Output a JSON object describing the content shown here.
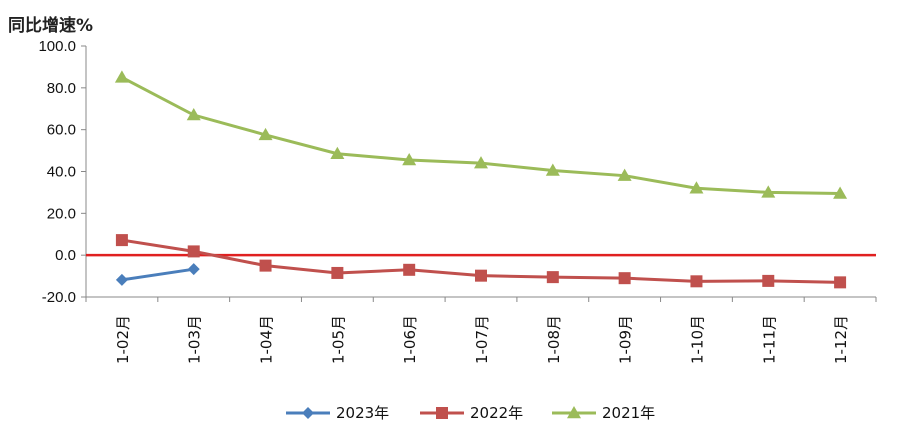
{
  "chart_data": {
    "type": "line",
    "title": "",
    "ylabel": "同比增速%",
    "xlabel": "",
    "categories": [
      "1-02月",
      "1-03月",
      "1-04月",
      "1-05月",
      "1-06月",
      "1-07月",
      "1-08月",
      "1-09月",
      "1-10月",
      "1-11月",
      "1-12月"
    ],
    "ylim": [
      -20,
      100
    ],
    "yticks": [
      "100.0",
      "80.0",
      "60.0",
      "40.0",
      "20.0",
      "0.0",
      "-20.0"
    ],
    "ytick_values": [
      100,
      80,
      60,
      40,
      20,
      0,
      -20
    ],
    "grid": false,
    "zero_line_color": "#e02020",
    "legend_position": "bottom",
    "series": [
      {
        "name": "2023年",
        "color": "#4a7ebb",
        "marker": "diamond",
        "values": [
          -11.8,
          -6.7,
          null,
          null,
          null,
          null,
          null,
          null,
          null,
          null,
          null
        ]
      },
      {
        "name": "2022年",
        "color": "#c0504d",
        "marker": "square",
        "values": [
          7.2,
          1.8,
          -5.0,
          -8.5,
          -7.0,
          -9.8,
          -10.5,
          -11.0,
          -12.5,
          -12.3,
          -13.0
        ]
      },
      {
        "name": "2021年",
        "color": "#9bbb59",
        "marker": "triangle",
        "values": [
          85.0,
          67.0,
          57.5,
          48.5,
          45.5,
          44.0,
          40.5,
          38.0,
          32.0,
          30.0,
          29.5
        ]
      }
    ]
  }
}
